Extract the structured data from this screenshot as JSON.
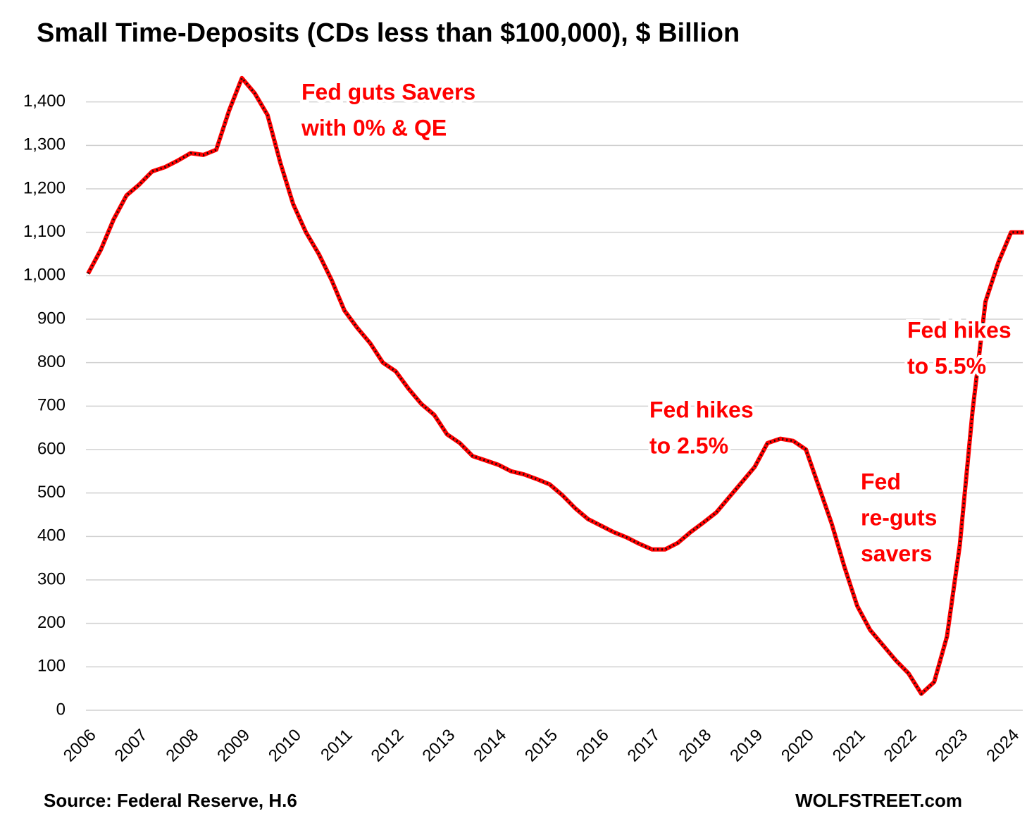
{
  "chart_data": {
    "type": "line",
    "title": "Small Time-Deposits (CDs less than $100,000), $ Billion",
    "categories": [
      "2006",
      null,
      null,
      null,
      "2007",
      null,
      null,
      null,
      "2008",
      null,
      null,
      null,
      "2009",
      null,
      null,
      null,
      "2010",
      null,
      null,
      null,
      "2011",
      null,
      null,
      null,
      "2012",
      null,
      null,
      null,
      "2013",
      null,
      null,
      null,
      "2014",
      null,
      null,
      null,
      "2015",
      null,
      null,
      null,
      "2016",
      null,
      null,
      null,
      "2017",
      null,
      null,
      null,
      "2018",
      null,
      null,
      null,
      "2019",
      null,
      null,
      null,
      "2020",
      null,
      null,
      null,
      "2021",
      null,
      null,
      null,
      "2022",
      null,
      null,
      null,
      "2023",
      null,
      null,
      null,
      "2024",
      null
    ],
    "series": [
      {
        "name": "Small Time-Deposits",
        "color": "#ff0000",
        "values": [
          1005,
          1060,
          1130,
          1185,
          1210,
          1240,
          1250,
          1265,
          1282,
          1278,
          1290,
          1380,
          1455,
          1420,
          1370,
          1260,
          1165,
          1100,
          1050,
          990,
          920,
          880,
          845,
          800,
          780,
          740,
          705,
          680,
          635,
          615,
          585,
          575,
          565,
          550,
          543,
          532,
          520,
          495,
          465,
          440,
          425,
          410,
          398,
          383,
          370,
          370,
          385,
          410,
          432,
          455,
          490,
          525,
          560,
          615,
          625,
          620,
          600,
          515,
          430,
          330,
          240,
          185,
          150,
          115,
          85,
          38,
          65,
          170,
          380,
          690,
          940,
          1030,
          1100,
          1100
        ]
      }
    ],
    "ylim": [
      0,
      1500
    ],
    "yticks": [
      0,
      100,
      200,
      300,
      400,
      500,
      600,
      700,
      800,
      900,
      {
        "value": 1000,
        "label": "1,000"
      },
      {
        "value": 1100,
        "label": "1,100"
      },
      {
        "value": 1200,
        "label": "1,200"
      },
      {
        "value": 1300,
        "label": "1,300"
      },
      {
        "value": 1400,
        "label": "1,400"
      }
    ],
    "grid": true,
    "annotations": [
      [
        "Fed guts Savers",
        "with 0% & QE"
      ],
      [
        "Fed hikes",
        "to 2.5%"
      ],
      [
        "Fed",
        "re-guts",
        "savers"
      ],
      [
        "Fed hikes",
        "to 5.5%"
      ]
    ],
    "source": "Source: Federal Reserve, H.6",
    "credit": "WOLFSTREET.com"
  }
}
